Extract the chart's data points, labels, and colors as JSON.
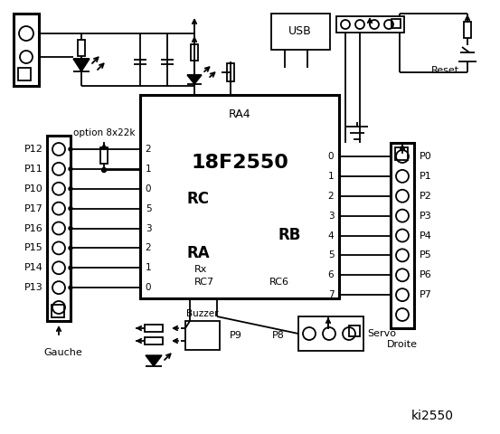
{
  "bg_color": "#ffffff",
  "title": "ki2550",
  "chip_label": "18F2550",
  "chip_sublabel": "RA4",
  "rc_label": "RC",
  "ra_label": "RA",
  "rb_label": "RB",
  "rc_pins_left": [
    "2",
    "1",
    "0",
    "5",
    "3",
    "2",
    "1",
    "0"
  ],
  "rc_pin_labels_left": [
    "P12",
    "P11",
    "P10",
    "P17",
    "P16",
    "P15",
    "P14",
    "P13"
  ],
  "rb_pins_right": [
    "0",
    "1",
    "2",
    "3",
    "4",
    "5",
    "6",
    "7"
  ],
  "rb_pin_labels_right": [
    "P0",
    "P1",
    "P2",
    "P3",
    "P4",
    "P5",
    "P6",
    "P7"
  ],
  "bottom_labels": [
    "Buzzer",
    "P9",
    "P8",
    "Servo"
  ],
  "bottom_left_label": "Gauche",
  "bottom_right_label": "Droite",
  "usb_label": "USB",
  "reset_label": "Reset",
  "rx_label": "Rx",
  "rc7_label": "RC7",
  "rc6_label": "RC6",
  "option_label": "option 8x22k"
}
